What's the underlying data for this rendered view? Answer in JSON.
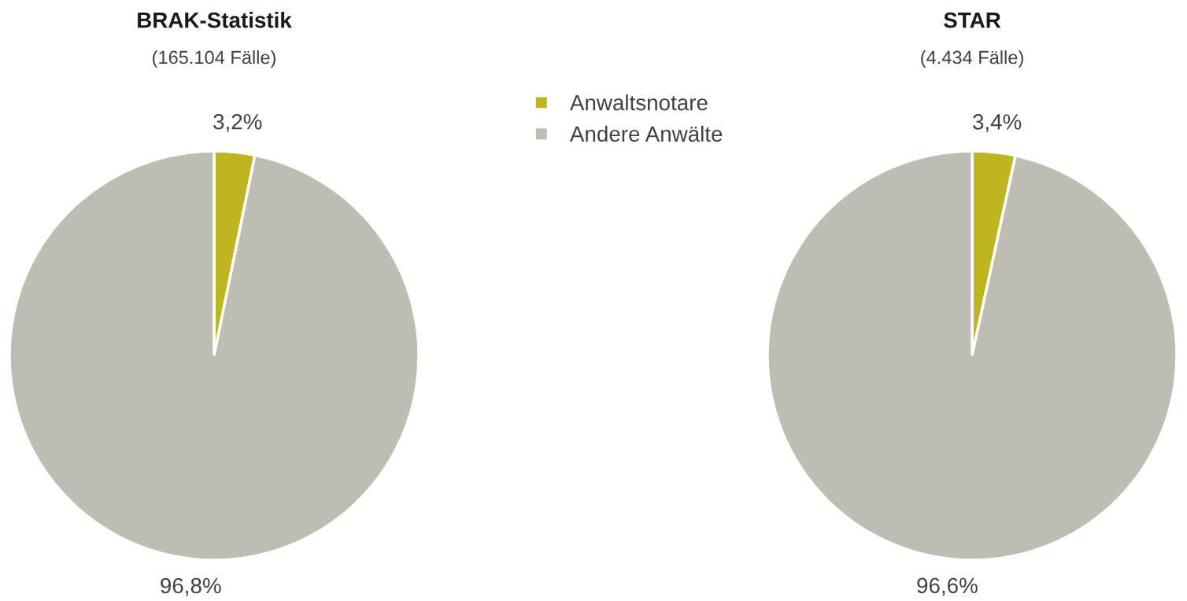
{
  "chart_data": [
    {
      "type": "pie",
      "title": "BRAK-Statistik",
      "subtitle": "(165.104 Fälle)",
      "categories": [
        "Anwaltsnotare",
        "Andere Anwälte"
      ],
      "values": [
        3.2,
        96.8
      ],
      "colors": [
        "#bdb521",
        "#bdbdb4"
      ],
      "value_labels": [
        "3,2%",
        "96,8%"
      ],
      "legend": "top right"
    },
    {
      "type": "pie",
      "title": "STAR",
      "subtitle": "(4.434 Fälle)",
      "values": [
        3.4,
        96.6
      ],
      "colors": [
        "#bdb521",
        "#bdbdb4"
      ],
      "value_labels": [
        "3,4%",
        "96,6%"
      ]
    }
  ]
}
